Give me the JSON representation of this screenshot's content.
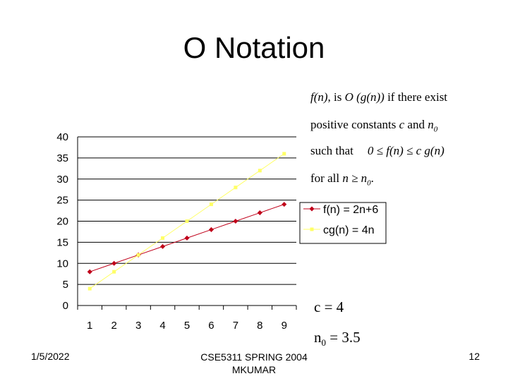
{
  "slide": {
    "title": "O Notation",
    "definition": {
      "line1_f": "f(n)",
      "line1_mid": ", is ",
      "line1_O": "O (g(n))",
      "line1_end": " if there exist",
      "line2_a": "positive constants ",
      "line2_c": "c",
      "line2_and": " and ",
      "line2_n0": "n",
      "line2_n0_sub": "0",
      "line3_a": "such that",
      "line3_expr": "0 ≤ f(n) ≤ c g(n)",
      "line4_a": "for all ",
      "line4_expr": "n ≥ n",
      "line4_sub": "0",
      "line4_end": "."
    },
    "c_value": "c = 4",
    "n0_label": "n",
    "n0_sub": "0",
    "n0_value": " = 3.5",
    "footer": {
      "date": "1/5/2022",
      "course_line1": "CSE5311 SPRING 2004",
      "course_line2": "MKUMAR",
      "page": "12"
    }
  },
  "colors": {
    "f_series": "#c0001a",
    "cg_series": "#ffff66",
    "grid": "#000000"
  },
  "chart_data": {
    "type": "line",
    "categories": [
      "1",
      "2",
      "3",
      "4",
      "5",
      "6",
      "7",
      "8",
      "9"
    ],
    "series": [
      {
        "name": "f(n) = 2n+6",
        "values": [
          8,
          10,
          12,
          14,
          16,
          18,
          20,
          22,
          24
        ]
      },
      {
        "name": "cg(n) = 4n",
        "values": [
          4,
          8,
          12,
          16,
          20,
          24,
          28,
          32,
          36
        ]
      }
    ],
    "yticks": [
      "0",
      "5",
      "10",
      "15",
      "20",
      "25",
      "30",
      "35",
      "40"
    ],
    "ylim": [
      0,
      40
    ],
    "grid": true,
    "legend": "right"
  }
}
